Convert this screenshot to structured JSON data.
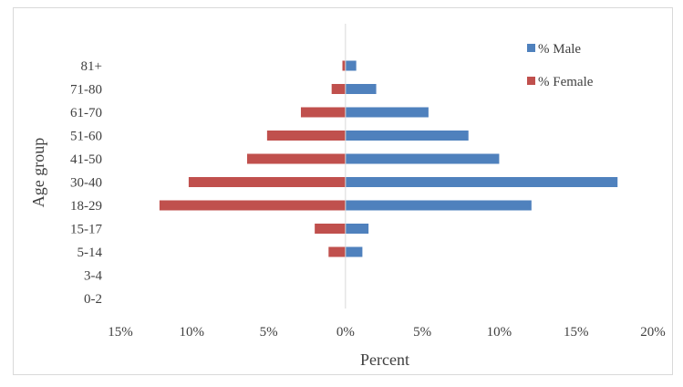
{
  "chart_data": {
    "type": "bar",
    "orientation": "horizontal",
    "title": "",
    "xlabel": "Percent",
    "ylabel": "Age group",
    "categories": [
      "0-2",
      "3-4",
      "5-14",
      "15-17",
      "18-29",
      "30-40",
      "41-50",
      "51-60",
      "61-70",
      "71-80",
      "81+"
    ],
    "series": [
      {
        "name": "% Male",
        "color": "#4f81bd",
        "values": [
          0.0,
          0.0,
          1.1,
          1.5,
          12.1,
          17.7,
          10.0,
          8.0,
          5.4,
          2.0,
          0.7
        ]
      },
      {
        "name": "% Female",
        "color": "#c0504d",
        "values": [
          0.0,
          0.0,
          -1.1,
          -2.0,
          -12.1,
          -10.2,
          -6.4,
          -5.1,
          -2.9,
          -0.9,
          -0.2
        ]
      }
    ],
    "xlim": [
      -15,
      20
    ],
    "xticks": [
      -15,
      -10,
      -5,
      0,
      5,
      10,
      15,
      20
    ],
    "xtick_labels": [
      "15%",
      "10%",
      "5%",
      "0%",
      "5%",
      "10%",
      "15%",
      "20%"
    ],
    "grid": false,
    "legend_position": "top-right"
  }
}
